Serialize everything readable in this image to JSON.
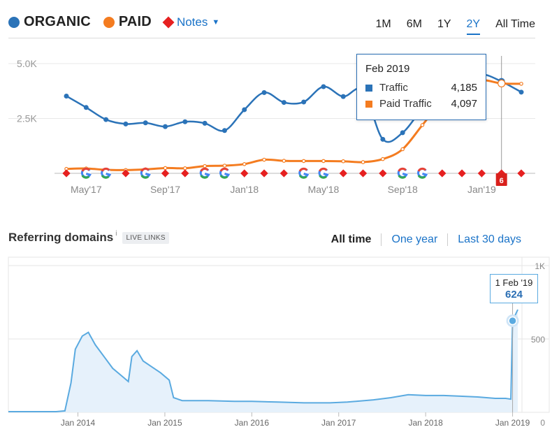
{
  "legend": {
    "organic": {
      "label": "ORGANIC",
      "color": "#2b73b8"
    },
    "paid": {
      "label": "PAID",
      "color": "#f47c20"
    },
    "notes": {
      "label": "Notes",
      "icon": "chevron-down-icon",
      "color": "#e62020"
    }
  },
  "range_tabs": [
    {
      "label": "1M",
      "active": false
    },
    {
      "label": "6M",
      "active": false
    },
    {
      "label": "1Y",
      "active": false
    },
    {
      "label": "2Y",
      "active": true
    },
    {
      "label": "All Time",
      "active": false
    }
  ],
  "tooltip": {
    "date": "Feb 2019",
    "rows": [
      {
        "name": "Traffic",
        "value": "4,185",
        "color": "#2b73b8"
      },
      {
        "name": "Paid Traffic",
        "value": "4,097",
        "color": "#f47c20"
      }
    ]
  },
  "notes_badge": "6",
  "referring": {
    "title": "Referring domains",
    "info": "i",
    "badge": "LIVE LINKS",
    "ranges": [
      {
        "label": "All time",
        "active": true
      },
      {
        "label": "One year",
        "active": false
      },
      {
        "label": "Last 30 days",
        "active": false
      }
    ],
    "tooltip": {
      "date": "1 Feb '19",
      "value": "624"
    }
  },
  "chart_data": [
    {
      "type": "line",
      "ylim": [
        0,
        5000
      ],
      "yticks": [
        "5.0K",
        "2.5K"
      ],
      "ytick_values": [
        5000,
        2500
      ],
      "xticks": [
        "May'17",
        "Sep'17",
        "Jan'18",
        "May'18",
        "Sep'18",
        "Jan'19"
      ],
      "xtick_index": [
        1,
        5,
        9,
        13,
        17,
        21
      ],
      "x": [
        "Apr'17",
        "May'17",
        "Jun'17",
        "Jul'17",
        "Aug'17",
        "Sep'17",
        "Oct'17",
        "Nov'17",
        "Dec'17",
        "Jan'18",
        "Feb'18",
        "Mar'18",
        "Apr'18",
        "May'18",
        "Jun'18",
        "Jul'18",
        "Aug'18",
        "Sep'18",
        "Oct'18",
        "Nov'18",
        "Dec'18",
        "Jan'19",
        "Feb'19",
        "Mar'19"
      ],
      "series": [
        {
          "name": "Traffic",
          "color": "#2b73b8",
          "values": [
            3520,
            3000,
            2450,
            2250,
            2300,
            2130,
            2350,
            2280,
            1950,
            2900,
            3680,
            3230,
            3250,
            3950,
            3500,
            3780,
            1550,
            1850,
            2950,
            3800,
            4300,
            4520,
            4185,
            3700
          ]
        },
        {
          "name": "Paid Traffic",
          "color": "#f47c20",
          "values": [
            200,
            220,
            160,
            150,
            180,
            240,
            230,
            330,
            350,
            420,
            620,
            570,
            560,
            560,
            550,
            510,
            650,
            1100,
            2200,
            3300,
            4050,
            4250,
            4097,
            4080
          ]
        }
      ],
      "notes_markers": [
        "diamond",
        "G",
        "G",
        "diamond",
        "G",
        "diamond",
        "diamond",
        "G",
        "G",
        "diamond",
        "diamond",
        "diamond",
        "G",
        "G",
        "diamond",
        "diamond",
        "diamond",
        "G",
        "G",
        "diamond",
        "diamond",
        "diamond",
        "diamond",
        "diamond"
      ]
    },
    {
      "type": "area",
      "ylim": [
        0,
        1000
      ],
      "yticks": [
        "1K",
        "500",
        "0"
      ],
      "ytick_values": [
        1000,
        500,
        0
      ],
      "xticks": [
        "Jan 2014",
        "Jan 2015",
        "Jan 2016",
        "Jan 2017",
        "Jan 2018",
        "Jan 2019"
      ],
      "xtick_years": [
        2014,
        2015,
        2016,
        2017,
        2018,
        2019
      ],
      "xlim": [
        2013.2,
        2019.1
      ],
      "color": "#5aaae0",
      "points": [
        [
          2013.2,
          5
        ],
        [
          2013.75,
          5
        ],
        [
          2013.85,
          10
        ],
        [
          2013.92,
          200
        ],
        [
          2013.97,
          430
        ],
        [
          2014.05,
          520
        ],
        [
          2014.12,
          545
        ],
        [
          2014.2,
          460
        ],
        [
          2014.3,
          380
        ],
        [
          2014.4,
          300
        ],
        [
          2014.5,
          250
        ],
        [
          2014.58,
          210
        ],
        [
          2014.62,
          380
        ],
        [
          2014.68,
          420
        ],
        [
          2014.75,
          350
        ],
        [
          2014.85,
          310
        ],
        [
          2014.95,
          270
        ],
        [
          2015.05,
          220
        ],
        [
          2015.1,
          100
        ],
        [
          2015.2,
          80
        ],
        [
          2015.5,
          80
        ],
        [
          2015.8,
          75
        ],
        [
          2016.0,
          75
        ],
        [
          2016.3,
          70
        ],
        [
          2016.6,
          65
        ],
        [
          2016.9,
          65
        ],
        [
          2017.1,
          70
        ],
        [
          2017.4,
          85
        ],
        [
          2017.6,
          100
        ],
        [
          2017.8,
          120
        ],
        [
          2018.0,
          115
        ],
        [
          2018.2,
          115
        ],
        [
          2018.4,
          110
        ],
        [
          2018.6,
          105
        ],
        [
          2018.8,
          95
        ],
        [
          2018.92,
          95
        ],
        [
          2018.98,
          90
        ],
        [
          2019.0,
          624
        ],
        [
          2019.06,
          700
        ]
      ],
      "highlight": [
        2019.0,
        624
      ]
    }
  ]
}
